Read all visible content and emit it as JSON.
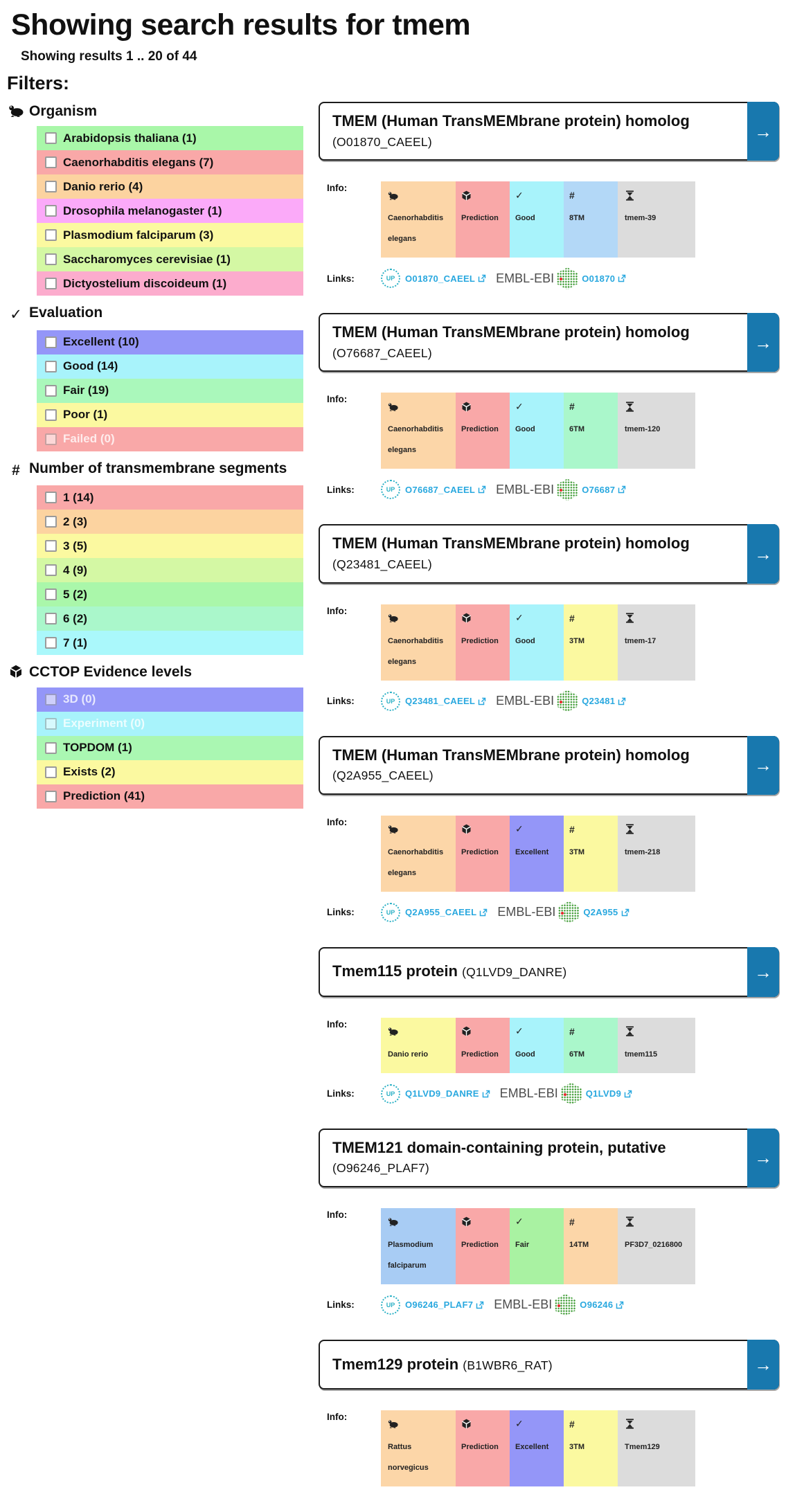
{
  "page": {
    "title": "Showing search results for tmem",
    "results_summary": "Showing results 1 .. 20 of 44"
  },
  "filters": {
    "heading": "Filters:",
    "sections": [
      {
        "title": "Organism",
        "icon": "frog-icon",
        "items": [
          {
            "label": "Arabidopsis thaliana",
            "count": 1,
            "color": "#a9f7a9",
            "disabled": false
          },
          {
            "label": "Caenorhabditis elegans",
            "count": 7,
            "color": "#f9a8a8",
            "disabled": false
          },
          {
            "label": "Danio rerio",
            "count": 4,
            "color": "#fcd3a0",
            "disabled": false
          },
          {
            "label": "Drosophila melanogaster",
            "count": 1,
            "color": "#fbaaf9",
            "disabled": false
          },
          {
            "label": "Plasmodium falciparum",
            "count": 3,
            "color": "#fbf9a0",
            "disabled": false
          },
          {
            "label": "Saccharomyces cerevisiae",
            "count": 1,
            "color": "#d4f8a4",
            "disabled": false
          },
          {
            "label": "Dictyostelium discoideum",
            "count": 1,
            "color": "#fcaccd",
            "disabled": false
          }
        ]
      },
      {
        "title": "Evaluation",
        "icon": "check-icon",
        "items": [
          {
            "label": "Excellent",
            "count": 10,
            "color": "#9496f8",
            "disabled": false
          },
          {
            "label": "Good",
            "count": 14,
            "color": "#a8f3fb",
            "disabled": false
          },
          {
            "label": "Fair",
            "count": 19,
            "color": "#aaf8bb",
            "disabled": false
          },
          {
            "label": "Poor",
            "count": 1,
            "color": "#fbf9a0",
            "disabled": false
          },
          {
            "label": "Failed",
            "count": 0,
            "color": "#f9a8a8",
            "disabled": true
          }
        ]
      },
      {
        "title": "Number of transmembrane segments",
        "icon": "hash-icon",
        "items": [
          {
            "label": "1",
            "count": 14,
            "color": "#f9a8a8",
            "disabled": false
          },
          {
            "label": "2",
            "count": 3,
            "color": "#fcd3a0",
            "disabled": false
          },
          {
            "label": "3",
            "count": 5,
            "color": "#fbf9a0",
            "disabled": false
          },
          {
            "label": "4",
            "count": 9,
            "color": "#d4f8a4",
            "disabled": false
          },
          {
            "label": "5",
            "count": 2,
            "color": "#aaf7aa",
            "disabled": false
          },
          {
            "label": "6",
            "count": 2,
            "color": "#aaf7cb",
            "disabled": false
          },
          {
            "label": "7",
            "count": 1,
            "color": "#aaf8fb",
            "disabled": false
          }
        ]
      },
      {
        "title": "CCTOP Evidence levels",
        "icon": "cube-icon",
        "items": [
          {
            "label": "3D",
            "count": 0,
            "color": "#9496f8",
            "disabled": true
          },
          {
            "label": "Experiment",
            "count": 0,
            "color": "#a8f3fb",
            "disabled": true
          },
          {
            "label": "TOPDOM",
            "count": 1,
            "color": "#aaf7b2",
            "disabled": false
          },
          {
            "label": "Exists",
            "count": 2,
            "color": "#fbf9a0",
            "disabled": false
          },
          {
            "label": "Prediction",
            "count": 41,
            "color": "#f9a8a8",
            "disabled": false
          }
        ]
      }
    ]
  },
  "results": {
    "accent_color": "#1878ae",
    "link_color": "#29a8df",
    "info_label": "Info:",
    "links_label": "Links:",
    "embl_label": "EMBL-EBI",
    "open_icon": "arrow-right-icon",
    "uniprot_icon": "uniprot-logo",
    "embl_icon": "embl-ebi-hexagon-logo",
    "cards": [
      {
        "title": "TMEM (Human TransMEMbrane protein) homolog",
        "accession": "O01870_CAEEL",
        "chips": [
          {
            "icon": "frog-icon",
            "text": "Caenorhabditis elegans",
            "color": "#fcd6a8",
            "kind": "org"
          },
          {
            "icon": "cube-icon",
            "text": "Prediction",
            "color": "#f9a8a8",
            "kind": "small"
          },
          {
            "icon": "check-icon",
            "text": "Good",
            "color": "#a8f3fb",
            "kind": "small"
          },
          {
            "icon": "hash-icon",
            "text": "8TM",
            "color": "#b3d8f7",
            "kind": "small"
          },
          {
            "icon": "hourglass-icon",
            "text": "tmem-39",
            "color": "#dcdcdc",
            "kind": "name"
          }
        ],
        "uniprot_link": "O01870_CAEEL",
        "embl_link": "O01870"
      },
      {
        "title": "TMEM (Human TransMEMbrane protein) homolog",
        "accession": "O76687_CAEEL",
        "chips": [
          {
            "icon": "frog-icon",
            "text": "Caenorhabditis elegans",
            "color": "#fcd6a8",
            "kind": "org"
          },
          {
            "icon": "cube-icon",
            "text": "Prediction",
            "color": "#f9a8a8",
            "kind": "small"
          },
          {
            "icon": "check-icon",
            "text": "Good",
            "color": "#a8f3fb",
            "kind": "small"
          },
          {
            "icon": "hash-icon",
            "text": "6TM",
            "color": "#aaf7cb",
            "kind": "small"
          },
          {
            "icon": "hourglass-icon",
            "text": "tmem-120",
            "color": "#dcdcdc",
            "kind": "name"
          }
        ],
        "uniprot_link": "O76687_CAEEL",
        "embl_link": "O76687"
      },
      {
        "title": "TMEM (Human TransMEMbrane protein) homolog",
        "accession": "Q23481_CAEEL",
        "chips": [
          {
            "icon": "frog-icon",
            "text": "Caenorhabditis elegans",
            "color": "#fcd6a8",
            "kind": "org"
          },
          {
            "icon": "cube-icon",
            "text": "Prediction",
            "color": "#f9a8a8",
            "kind": "small"
          },
          {
            "icon": "check-icon",
            "text": "Good",
            "color": "#a8f3fb",
            "kind": "small"
          },
          {
            "icon": "hash-icon",
            "text": "3TM",
            "color": "#fbf9a0",
            "kind": "small"
          },
          {
            "icon": "hourglass-icon",
            "text": "tmem-17",
            "color": "#dcdcdc",
            "kind": "name"
          }
        ],
        "uniprot_link": "Q23481_CAEEL",
        "embl_link": "Q23481"
      },
      {
        "title": "TMEM (Human TransMEMbrane protein) homolog",
        "accession": "Q2A955_CAEEL",
        "chips": [
          {
            "icon": "frog-icon",
            "text": "Caenorhabditis elegans",
            "color": "#fcd6a8",
            "kind": "org"
          },
          {
            "icon": "cube-icon",
            "text": "Prediction",
            "color": "#f9a8a8",
            "kind": "small"
          },
          {
            "icon": "check-icon",
            "text": "Excellent",
            "color": "#9496f8",
            "kind": "small"
          },
          {
            "icon": "hash-icon",
            "text": "3TM",
            "color": "#fbf9a0",
            "kind": "small"
          },
          {
            "icon": "hourglass-icon",
            "text": "tmem-218",
            "color": "#dcdcdc",
            "kind": "name"
          }
        ],
        "uniprot_link": "Q2A955_CAEEL",
        "embl_link": "Q2A955"
      },
      {
        "title": "Tmem115 protein",
        "accession": "Q1LVD9_DANRE",
        "chips": [
          {
            "icon": "frog-icon",
            "text": "Danio rerio",
            "color": "#fbf9a0",
            "kind": "org"
          },
          {
            "icon": "cube-icon",
            "text": "Prediction",
            "color": "#f9a8a8",
            "kind": "small"
          },
          {
            "icon": "check-icon",
            "text": "Good",
            "color": "#a8f3fb",
            "kind": "small"
          },
          {
            "icon": "hash-icon",
            "text": "6TM",
            "color": "#aaf7cb",
            "kind": "small"
          },
          {
            "icon": "hourglass-icon",
            "text": "tmem115",
            "color": "#dcdcdc",
            "kind": "name"
          }
        ],
        "uniprot_link": "Q1LVD9_DANRE",
        "embl_link": "Q1LVD9"
      },
      {
        "title": "TMEM121 domain-containing protein, putative",
        "accession": "O96246_PLAF7",
        "chips": [
          {
            "icon": "frog-icon",
            "text": "Plasmodium falciparum",
            "color": "#a8ccf4",
            "kind": "org"
          },
          {
            "icon": "cube-icon",
            "text": "Prediction",
            "color": "#f9a8a8",
            "kind": "small"
          },
          {
            "icon": "check-icon",
            "text": "Fair",
            "color": "#a9f2a2",
            "kind": "small"
          },
          {
            "icon": "hash-icon",
            "text": "14TM",
            "color": "#fcd6a8",
            "kind": "small"
          },
          {
            "icon": "hourglass-icon",
            "text": "PF3D7_0216800",
            "color": "#dcdcdc",
            "kind": "name"
          }
        ],
        "uniprot_link": "O96246_PLAF7",
        "embl_link": "O96246"
      },
      {
        "title": "Tmem129 protein",
        "accession": "B1WBR6_RAT",
        "chips": [
          {
            "icon": "frog-icon",
            "text": "Rattus norvegicus",
            "color": "#fcd6a8",
            "kind": "org"
          },
          {
            "icon": "cube-icon",
            "text": "Prediction",
            "color": "#f9a8a8",
            "kind": "small"
          },
          {
            "icon": "check-icon",
            "text": "Excellent",
            "color": "#9496f8",
            "kind": "small"
          },
          {
            "icon": "hash-icon",
            "text": "3TM",
            "color": "#fbf9a0",
            "kind": "small"
          },
          {
            "icon": "hourglass-icon",
            "text": "Tmem129",
            "color": "#dcdcdc",
            "kind": "name"
          }
        ],
        "uniprot_link": null,
        "embl_link": null
      }
    ]
  }
}
